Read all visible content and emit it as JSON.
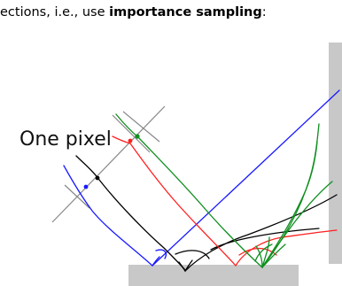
{
  "caption": {
    "prefix": "ections, i.e., use ",
    "emphasis": "importance sampling",
    "suffix": ":"
  },
  "pixel_label": "One pixel",
  "colors": {
    "blue": "#1a1aff",
    "red": "#ff1f1f",
    "green": "#0f8f1f",
    "black": "#000000",
    "surface": "#c8c8c8",
    "wall": "#c8c8c8",
    "pixel_lines": "#888888"
  }
}
